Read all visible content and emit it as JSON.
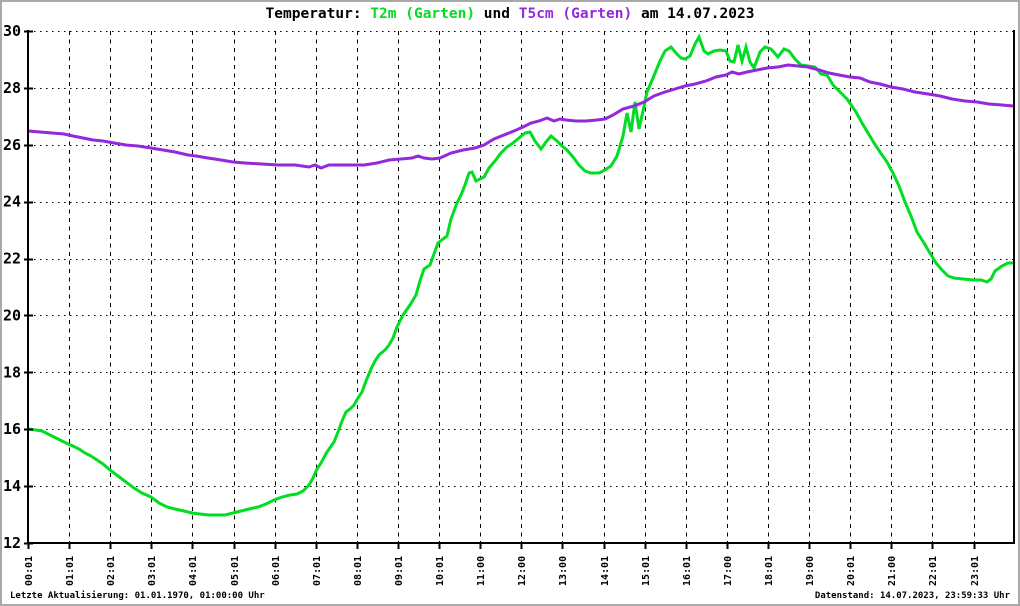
{
  "window_title": "Temperatur T2m und T5cm Garten 14.07.2023",
  "title": {
    "prefix": "Temperatur: ",
    "series1_label": "T2m (Garten)",
    "mid": " und ",
    "series2_label": "T5cm (Garten)",
    "suffix": " am 14.07.2023"
  },
  "footer": {
    "left": "Letzte Aktualisierung: 01.01.1970, 01:00:00 Uhr",
    "right": "Datenstand: 14.07.2023, 23:59:33 Uhr"
  },
  "colors": {
    "t2m_green": "#00dd22",
    "t5cm_purple": "#9428dc",
    "axis_black": "#000000",
    "frame_gray": "#a9a9a9"
  },
  "chart_data": {
    "type": "line",
    "title": "Temperatur: T2m (Garten) und T5cm (Garten) am 14.07.2023",
    "xlabel": "",
    "ylabel": "",
    "grid": true,
    "legend_position": "in-title",
    "ylim": [
      12,
      30
    ],
    "y_ticks": [
      12,
      14,
      16,
      18,
      20,
      22,
      24,
      26,
      28,
      30
    ],
    "x_start_hour": 0.0167,
    "x_end_hour": 24,
    "x_tick_hours": [
      0.0167,
      1.0167,
      2.0167,
      3.0167,
      4.0167,
      5.0167,
      6.0167,
      7.0167,
      8.0167,
      9.0167,
      10.0167,
      11.0167,
      12.0167,
      13.0167,
      14.0167,
      15.0167,
      16.0167,
      17.0167,
      18.0167,
      19.0167,
      20.0167,
      21.0167,
      22.0167,
      23.0167
    ],
    "x_tick_labels": [
      "00:01",
      "01:01",
      "02:01",
      "03:01",
      "04:01",
      "05:01",
      "06:01",
      "07:01",
      "08:01",
      "09:01",
      "10:01",
      "11:00",
      "12:00",
      "13:00",
      "14:01",
      "15:01",
      "16:01",
      "17:00",
      "18:01",
      "19:00",
      "20:01",
      "21:00",
      "22:01",
      "23:01"
    ],
    "series": [
      {
        "name": "T2m (Garten)",
        "color_key": "t2m_green",
        "points": [
          [
            0.02,
            16.0
          ],
          [
            0.2,
            15.97
          ],
          [
            0.35,
            15.93
          ],
          [
            0.5,
            15.82
          ],
          [
            0.65,
            15.72
          ],
          [
            0.8,
            15.62
          ],
          [
            0.95,
            15.52
          ],
          [
            1.1,
            15.42
          ],
          [
            1.25,
            15.3
          ],
          [
            1.4,
            15.18
          ],
          [
            1.55,
            15.05
          ],
          [
            1.7,
            14.92
          ],
          [
            1.85,
            14.78
          ],
          [
            2.0,
            14.58
          ],
          [
            2.2,
            14.35
          ],
          [
            2.4,
            14.15
          ],
          [
            2.6,
            13.95
          ],
          [
            2.8,
            13.75
          ],
          [
            3.0,
            13.6
          ],
          [
            3.2,
            13.42
          ],
          [
            3.4,
            13.28
          ],
          [
            3.6,
            13.2
          ],
          [
            3.8,
            13.12
          ],
          [
            4.0,
            13.07
          ],
          [
            4.2,
            13.02
          ],
          [
            4.4,
            13.0
          ],
          [
            4.6,
            12.98
          ],
          [
            4.8,
            13.0
          ],
          [
            5.0,
            13.05
          ],
          [
            5.2,
            13.12
          ],
          [
            5.4,
            13.18
          ],
          [
            5.6,
            13.26
          ],
          [
            5.8,
            13.38
          ],
          [
            6.0,
            13.5
          ],
          [
            6.2,
            13.6
          ],
          [
            6.4,
            13.68
          ],
          [
            6.55,
            13.72
          ],
          [
            6.7,
            13.82
          ],
          [
            6.85,
            14.05
          ],
          [
            6.95,
            14.3
          ],
          [
            7.05,
            14.6
          ],
          [
            7.15,
            14.8
          ],
          [
            7.3,
            15.2
          ],
          [
            7.45,
            15.55
          ],
          [
            7.55,
            15.9
          ],
          [
            7.65,
            16.3
          ],
          [
            7.75,
            16.6
          ],
          [
            7.85,
            16.72
          ],
          [
            7.95,
            16.85
          ],
          [
            8.05,
            17.1
          ],
          [
            8.15,
            17.3
          ],
          [
            8.25,
            17.7
          ],
          [
            8.35,
            18.1
          ],
          [
            8.45,
            18.4
          ],
          [
            8.55,
            18.62
          ],
          [
            8.7,
            18.78
          ],
          [
            8.8,
            18.95
          ],
          [
            8.9,
            19.2
          ],
          [
            9.0,
            19.6
          ],
          [
            9.15,
            20.0
          ],
          [
            9.3,
            20.35
          ],
          [
            9.45,
            20.72
          ],
          [
            9.55,
            21.2
          ],
          [
            9.65,
            21.62
          ],
          [
            9.8,
            21.78
          ],
          [
            9.9,
            22.15
          ],
          [
            10.0,
            22.55
          ],
          [
            10.1,
            22.68
          ],
          [
            10.2,
            22.78
          ],
          [
            10.3,
            23.4
          ],
          [
            10.45,
            23.95
          ],
          [
            10.55,
            24.25
          ],
          [
            10.65,
            24.6
          ],
          [
            10.75,
            25.0
          ],
          [
            10.82,
            25.05
          ],
          [
            10.92,
            24.72
          ],
          [
            11.02,
            24.8
          ],
          [
            11.12,
            24.88
          ],
          [
            11.22,
            25.2
          ],
          [
            11.37,
            25.42
          ],
          [
            11.52,
            25.7
          ],
          [
            11.67,
            25.92
          ],
          [
            11.82,
            26.05
          ],
          [
            11.95,
            26.25
          ],
          [
            12.1,
            26.4
          ],
          [
            12.22,
            26.45
          ],
          [
            12.35,
            26.15
          ],
          [
            12.5,
            25.85
          ],
          [
            12.62,
            26.1
          ],
          [
            12.75,
            26.3
          ],
          [
            12.88,
            26.12
          ],
          [
            13.0,
            25.95
          ],
          [
            13.12,
            25.8
          ],
          [
            13.27,
            25.58
          ],
          [
            13.42,
            25.3
          ],
          [
            13.57,
            25.08
          ],
          [
            13.72,
            25.0
          ],
          [
            13.9,
            25.0
          ],
          [
            14.05,
            25.1
          ],
          [
            14.2,
            25.25
          ],
          [
            14.35,
            25.6
          ],
          [
            14.48,
            26.3
          ],
          [
            14.58,
            27.1
          ],
          [
            14.68,
            26.45
          ],
          [
            14.78,
            27.5
          ],
          [
            14.88,
            26.55
          ],
          [
            14.98,
            27.2
          ],
          [
            15.08,
            27.85
          ],
          [
            15.22,
            28.35
          ],
          [
            15.38,
            28.95
          ],
          [
            15.52,
            29.3
          ],
          [
            15.65,
            29.45
          ],
          [
            15.78,
            29.22
          ],
          [
            15.9,
            29.05
          ],
          [
            16.0,
            29.0
          ],
          [
            16.12,
            29.12
          ],
          [
            16.25,
            29.55
          ],
          [
            16.35,
            29.8
          ],
          [
            16.45,
            29.3
          ],
          [
            16.55,
            29.2
          ],
          [
            16.7,
            29.28
          ],
          [
            16.85,
            29.33
          ],
          [
            17.0,
            29.3
          ],
          [
            17.1,
            28.95
          ],
          [
            17.18,
            28.9
          ],
          [
            17.28,
            29.5
          ],
          [
            17.38,
            28.95
          ],
          [
            17.48,
            29.42
          ],
          [
            17.58,
            28.9
          ],
          [
            17.68,
            28.7
          ],
          [
            17.82,
            29.25
          ],
          [
            17.95,
            29.45
          ],
          [
            18.1,
            29.35
          ],
          [
            18.25,
            29.1
          ],
          [
            18.4,
            29.38
          ],
          [
            18.52,
            29.28
          ],
          [
            18.68,
            29.0
          ],
          [
            18.82,
            28.82
          ],
          [
            19.0,
            28.76
          ],
          [
            19.15,
            28.74
          ],
          [
            19.3,
            28.5
          ],
          [
            19.45,
            28.45
          ],
          [
            19.6,
            28.1
          ],
          [
            19.75,
            27.9
          ],
          [
            19.95,
            27.6
          ],
          [
            20.15,
            27.15
          ],
          [
            20.3,
            26.75
          ],
          [
            20.45,
            26.4
          ],
          [
            20.6,
            26.05
          ],
          [
            20.75,
            25.75
          ],
          [
            20.9,
            25.4
          ],
          [
            21.05,
            25.0
          ],
          [
            21.2,
            24.55
          ],
          [
            21.35,
            24.0
          ],
          [
            21.5,
            23.5
          ],
          [
            21.65,
            22.95
          ],
          [
            21.8,
            22.55
          ],
          [
            21.95,
            22.2
          ],
          [
            22.1,
            21.85
          ],
          [
            22.25,
            21.6
          ],
          [
            22.4,
            21.4
          ],
          [
            22.55,
            21.3
          ],
          [
            22.75,
            21.27
          ],
          [
            23.0,
            21.25
          ],
          [
            23.2,
            21.25
          ],
          [
            23.35,
            21.18
          ],
          [
            23.45,
            21.28
          ],
          [
            23.55,
            21.55
          ],
          [
            23.7,
            21.75
          ],
          [
            23.85,
            21.85
          ],
          [
            23.97,
            21.85
          ]
        ]
      },
      {
        "name": "T5cm (Garten)",
        "color_key": "t5cm_purple",
        "points": [
          [
            0.02,
            26.5
          ],
          [
            0.3,
            26.45
          ],
          [
            0.6,
            26.42
          ],
          [
            0.9,
            26.38
          ],
          [
            1.1,
            26.32
          ],
          [
            1.35,
            26.25
          ],
          [
            1.6,
            26.18
          ],
          [
            1.85,
            26.12
          ],
          [
            2.1,
            26.06
          ],
          [
            2.4,
            26.0
          ],
          [
            2.7,
            25.95
          ],
          [
            3.0,
            25.88
          ],
          [
            3.3,
            25.82
          ],
          [
            3.6,
            25.75
          ],
          [
            3.9,
            25.65
          ],
          [
            4.1,
            25.6
          ],
          [
            4.4,
            25.52
          ],
          [
            4.7,
            25.45
          ],
          [
            5.0,
            25.38
          ],
          [
            5.3,
            25.35
          ],
          [
            5.7,
            25.33
          ],
          [
            6.1,
            25.3
          ],
          [
            6.5,
            25.3
          ],
          [
            6.85,
            25.22
          ],
          [
            7.0,
            25.28
          ],
          [
            7.15,
            25.2
          ],
          [
            7.35,
            25.28
          ],
          [
            7.6,
            25.3
          ],
          [
            7.9,
            25.3
          ],
          [
            8.2,
            25.3
          ],
          [
            8.5,
            25.35
          ],
          [
            8.8,
            25.45
          ],
          [
            9.1,
            25.5
          ],
          [
            9.35,
            25.55
          ],
          [
            9.5,
            25.62
          ],
          [
            9.65,
            25.55
          ],
          [
            9.85,
            25.5
          ],
          [
            10.05,
            25.55
          ],
          [
            10.3,
            25.7
          ],
          [
            10.6,
            25.8
          ],
          [
            10.9,
            25.88
          ],
          [
            11.1,
            26.0
          ],
          [
            11.35,
            26.2
          ],
          [
            11.6,
            26.35
          ],
          [
            11.85,
            26.5
          ],
          [
            12.05,
            26.62
          ],
          [
            12.25,
            26.75
          ],
          [
            12.45,
            26.85
          ],
          [
            12.65,
            26.95
          ],
          [
            12.8,
            26.85
          ],
          [
            12.95,
            26.92
          ],
          [
            13.1,
            26.88
          ],
          [
            13.35,
            26.85
          ],
          [
            13.6,
            26.85
          ],
          [
            13.85,
            26.88
          ],
          [
            14.05,
            26.92
          ],
          [
            14.25,
            27.05
          ],
          [
            14.5,
            27.25
          ],
          [
            14.75,
            27.38
          ],
          [
            15.0,
            27.5
          ],
          [
            15.25,
            27.7
          ],
          [
            15.5,
            27.85
          ],
          [
            15.75,
            27.95
          ],
          [
            16.0,
            28.05
          ],
          [
            16.25,
            28.15
          ],
          [
            16.5,
            28.25
          ],
          [
            16.75,
            28.38
          ],
          [
            17.0,
            28.45
          ],
          [
            17.15,
            28.55
          ],
          [
            17.3,
            28.48
          ],
          [
            17.5,
            28.55
          ],
          [
            17.75,
            28.62
          ],
          [
            18.0,
            28.7
          ],
          [
            18.25,
            28.75
          ],
          [
            18.5,
            28.8
          ],
          [
            18.75,
            28.77
          ],
          [
            19.0,
            28.72
          ],
          [
            19.25,
            28.62
          ],
          [
            19.5,
            28.52
          ],
          [
            19.75,
            28.45
          ],
          [
            20.0,
            28.4
          ],
          [
            20.25,
            28.35
          ],
          [
            20.5,
            28.22
          ],
          [
            20.75,
            28.12
          ],
          [
            21.0,
            28.02
          ],
          [
            21.3,
            27.95
          ],
          [
            21.6,
            27.85
          ],
          [
            21.9,
            27.78
          ],
          [
            22.2,
            27.72
          ],
          [
            22.5,
            27.62
          ],
          [
            22.8,
            27.55
          ],
          [
            23.1,
            27.5
          ],
          [
            23.4,
            27.45
          ],
          [
            23.7,
            27.4
          ],
          [
            23.97,
            27.35
          ]
        ]
      }
    ]
  }
}
